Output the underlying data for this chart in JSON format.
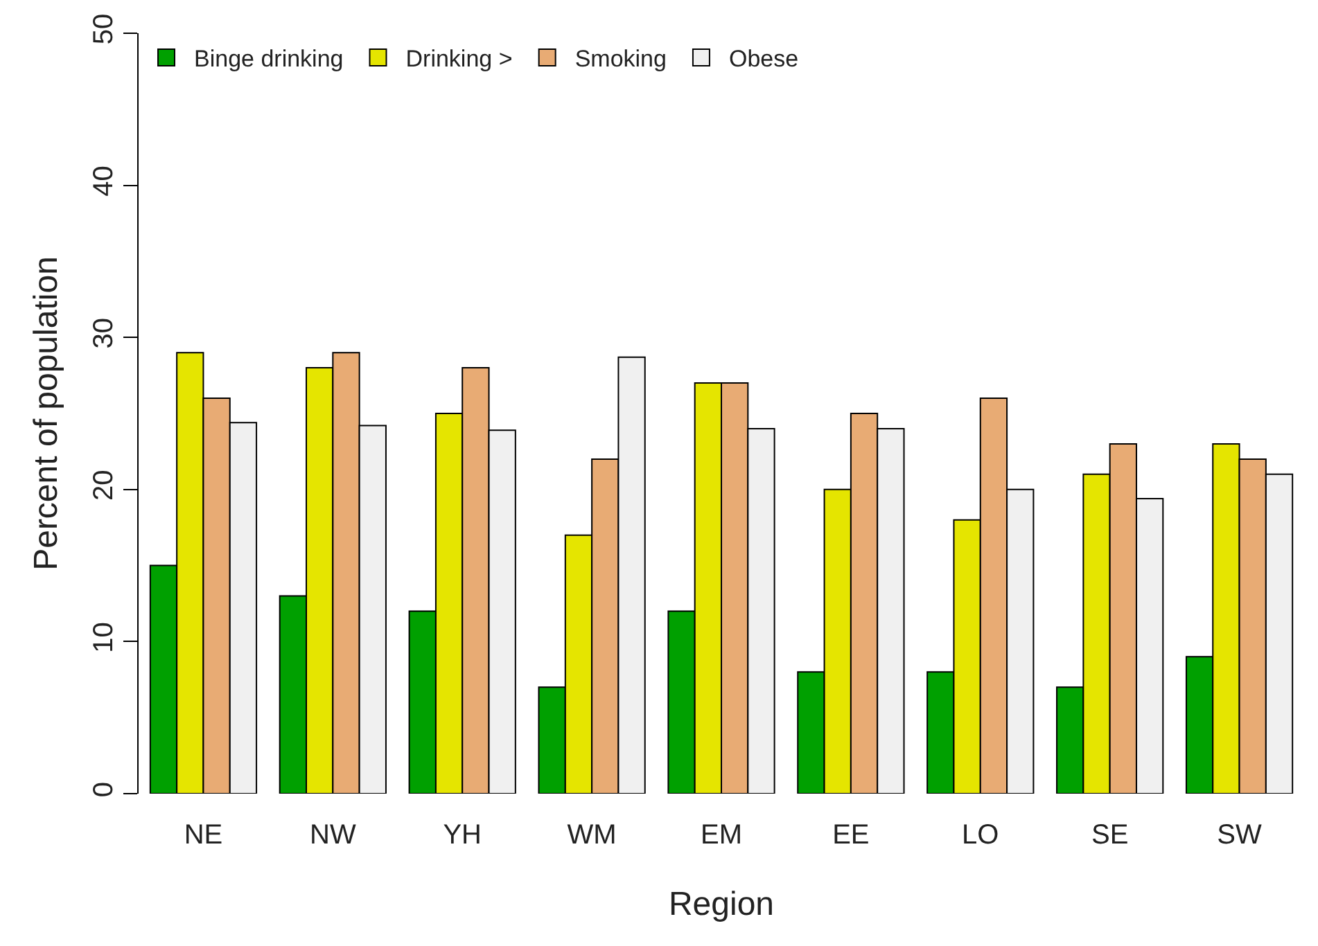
{
  "chart_data": {
    "type": "bar",
    "xlabel": "Region",
    "ylabel": "Percent of population",
    "categories": [
      "NE",
      "NW",
      "YH",
      "WM",
      "EM",
      "EE",
      "LO",
      "SE",
      "SW"
    ],
    "series": [
      {
        "name": "Binge drinking",
        "color": "#00a000",
        "values": [
          15,
          13,
          12,
          7,
          12,
          8,
          8,
          7,
          9
        ]
      },
      {
        "name": "Drinking >",
        "color": "#e5e500",
        "values": [
          29,
          28,
          25,
          17,
          27,
          20,
          18,
          21,
          23
        ]
      },
      {
        "name": "Smoking",
        "color": "#e8ab74",
        "values": [
          26,
          29,
          28,
          22,
          27,
          25,
          26,
          23,
          22
        ]
      },
      {
        "name": "Obese",
        "color": "#f0f0f0",
        "values": [
          24.4,
          24.2,
          23.9,
          28.7,
          24,
          24,
          20,
          19.4,
          21
        ]
      }
    ],
    "ylim": [
      0,
      50
    ],
    "yticks": [
      0,
      10,
      20,
      30,
      40,
      50
    ],
    "legend": "top"
  }
}
